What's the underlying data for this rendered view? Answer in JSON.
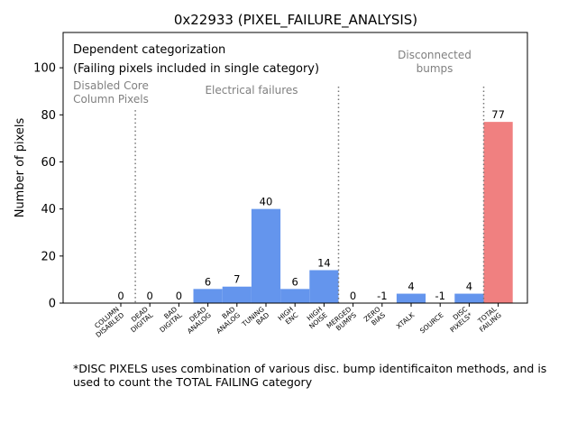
{
  "chart_data": {
    "type": "bar",
    "title": "0x22933 (PIXEL_FAILURE_ANALYSIS)",
    "xlabel": "",
    "ylabel": "Number of pixels",
    "ylim": [
      0,
      115
    ],
    "yticks": [
      0,
      20,
      40,
      60,
      80,
      100
    ],
    "grid": false,
    "categories": [
      "COLUMN\nDISABLED",
      "DEAD\nDIGITAL",
      "BAD\nDIGITAL",
      "DEAD\nANALOG",
      "BAD\nANALOG",
      "TUNING\nBAD",
      "HIGH\nENC",
      "HIGH\nNOISE",
      "MERGED\nBUMPS",
      "ZERO\nBIAS",
      "XTALK",
      "SOURCE",
      "DISC\nPIXELS*",
      "TOTAL\nFAILING"
    ],
    "values": [
      0,
      0,
      0,
      6,
      7,
      40,
      6,
      14,
      0,
      -1,
      4,
      -1,
      4,
      77
    ],
    "data_labels": [
      "0",
      "0",
      "0",
      "6",
      "7",
      "40",
      "6",
      "14",
      "0",
      "-1",
      "4",
      "-1",
      "4",
      "77"
    ],
    "colors": {
      "normal": "#6495ed",
      "total": "#f08080",
      "divider": "#777777",
      "section_text": "#808080"
    },
    "dividers_after_category_index": [
      0,
      7,
      12
    ],
    "sections": [
      "Disabled Core\nColumn Pixels",
      "Electrical failures",
      "Disconnected\nbumps"
    ],
    "annotation": [
      "Dependent categorization",
      "(Failing pixels included in single category)"
    ]
  },
  "footnote": "*DISC PIXELS uses combination of various disc. bump identificaiton methods, and is\nused to count the TOTAL FAILING category"
}
